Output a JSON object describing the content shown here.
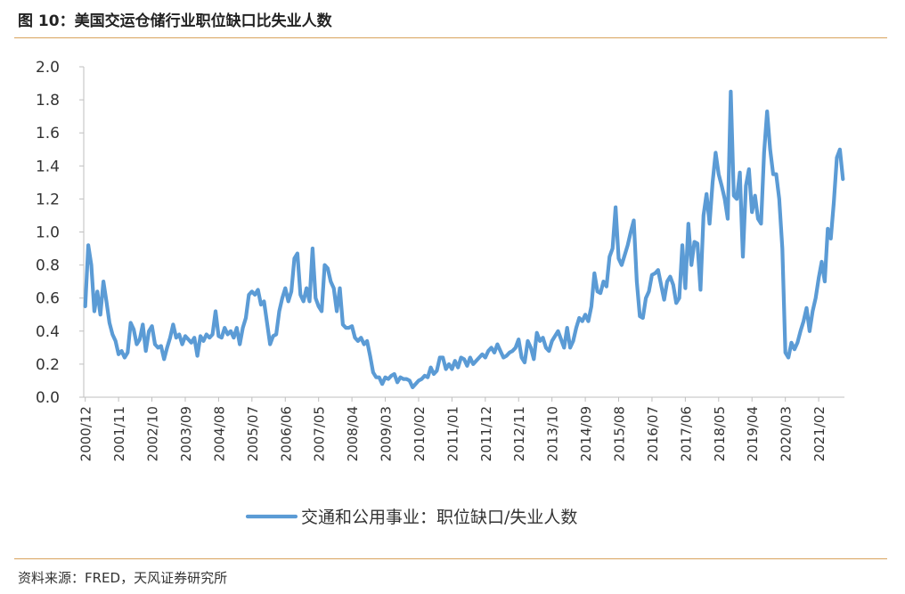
{
  "header": {
    "title": "图 10：美国交运仓储行业职位缺口比失业人数"
  },
  "footer": {
    "source": "资料来源：FRED，天风证券研究所"
  },
  "colors": {
    "line": "#5b9bd5",
    "rule": "#d9a35c",
    "axis": "#bfbfbf",
    "text": "#333333"
  },
  "chart_data": {
    "type": "line",
    "title": "",
    "xlabel": "",
    "ylabel": "",
    "ylim": [
      0,
      2.0
    ],
    "yticks": [
      "0.0",
      "0.2",
      "0.4",
      "0.6",
      "0.8",
      "1.0",
      "1.2",
      "1.4",
      "1.6",
      "1.8",
      "2.0"
    ],
    "xtick_labels": [
      "2000/12",
      "2001/11",
      "2002/10",
      "2003/09",
      "2004/08",
      "2005/07",
      "2006/06",
      "2007/05",
      "2008/04",
      "2009/03",
      "2010/02",
      "2011/01",
      "2011/12",
      "2012/11",
      "2013/10",
      "2014/09",
      "2015/08",
      "2016/07",
      "2017/06",
      "2018/05",
      "2019/04",
      "2020/03",
      "2021/02"
    ],
    "grid": false,
    "legend_position": "bottom",
    "series": [
      {
        "name": "交通和公用事业：职位缺口/失业人数",
        "points": [
          [
            "2000/12",
            0.55
          ],
          [
            "2001/01",
            0.92
          ],
          [
            "2001/02",
            0.8
          ],
          [
            "2001/03",
            0.52
          ],
          [
            "2001/04",
            0.64
          ],
          [
            "2001/05",
            0.5
          ],
          [
            "2001/06",
            0.7
          ],
          [
            "2001/07",
            0.58
          ],
          [
            "2001/08",
            0.45
          ],
          [
            "2001/09",
            0.38
          ],
          [
            "2001/10",
            0.34
          ],
          [
            "2001/11",
            0.26
          ],
          [
            "2001/12",
            0.28
          ],
          [
            "2002/01",
            0.24
          ],
          [
            "2002/02",
            0.27
          ],
          [
            "2002/03",
            0.45
          ],
          [
            "2002/04",
            0.41
          ],
          [
            "2002/05",
            0.32
          ],
          [
            "2002/06",
            0.35
          ],
          [
            "2002/07",
            0.44
          ],
          [
            "2002/08",
            0.28
          ],
          [
            "2002/09",
            0.4
          ],
          [
            "2002/10",
            0.43
          ],
          [
            "2002/11",
            0.32
          ],
          [
            "2002/12",
            0.3
          ],
          [
            "2003/01",
            0.31
          ],
          [
            "2003/02",
            0.23
          ],
          [
            "2003/03",
            0.3
          ],
          [
            "2003/04",
            0.36
          ],
          [
            "2003/05",
            0.44
          ],
          [
            "2003/06",
            0.36
          ],
          [
            "2003/07",
            0.38
          ],
          [
            "2003/08",
            0.32
          ],
          [
            "2003/09",
            0.37
          ],
          [
            "2003/10",
            0.35
          ],
          [
            "2003/11",
            0.33
          ],
          [
            "2003/12",
            0.36
          ],
          [
            "2004/01",
            0.25
          ],
          [
            "2004/02",
            0.37
          ],
          [
            "2004/03",
            0.34
          ],
          [
            "2004/04",
            0.38
          ],
          [
            "2004/05",
            0.36
          ],
          [
            "2004/06",
            0.38
          ],
          [
            "2004/07",
            0.52
          ],
          [
            "2004/08",
            0.37
          ],
          [
            "2004/09",
            0.36
          ],
          [
            "2004/10",
            0.42
          ],
          [
            "2004/11",
            0.38
          ],
          [
            "2004/12",
            0.4
          ],
          [
            "2005/01",
            0.36
          ],
          [
            "2005/02",
            0.42
          ],
          [
            "2005/03",
            0.32
          ],
          [
            "2005/04",
            0.42
          ],
          [
            "2005/05",
            0.48
          ],
          [
            "2005/06",
            0.62
          ],
          [
            "2005/07",
            0.64
          ],
          [
            "2005/08",
            0.62
          ],
          [
            "2005/09",
            0.65
          ],
          [
            "2005/10",
            0.56
          ],
          [
            "2005/11",
            0.58
          ],
          [
            "2005/12",
            0.45
          ],
          [
            "2006/01",
            0.32
          ],
          [
            "2006/02",
            0.37
          ],
          [
            "2006/03",
            0.38
          ],
          [
            "2006/04",
            0.52
          ],
          [
            "2006/05",
            0.6
          ],
          [
            "2006/06",
            0.66
          ],
          [
            "2006/07",
            0.58
          ],
          [
            "2006/08",
            0.64
          ],
          [
            "2006/09",
            0.84
          ],
          [
            "2006/10",
            0.87
          ],
          [
            "2006/11",
            0.62
          ],
          [
            "2006/12",
            0.58
          ],
          [
            "2007/01",
            0.66
          ],
          [
            "2007/02",
            0.58
          ],
          [
            "2007/03",
            0.9
          ],
          [
            "2007/04",
            0.6
          ],
          [
            "2007/05",
            0.55
          ],
          [
            "2007/06",
            0.52
          ],
          [
            "2007/07",
            0.8
          ],
          [
            "2007/08",
            0.78
          ],
          [
            "2007/09",
            0.7
          ],
          [
            "2007/10",
            0.66
          ],
          [
            "2007/11",
            0.52
          ],
          [
            "2007/12",
            0.66
          ],
          [
            "2008/01",
            0.44
          ],
          [
            "2008/02",
            0.42
          ],
          [
            "2008/03",
            0.42
          ],
          [
            "2008/04",
            0.43
          ],
          [
            "2008/05",
            0.36
          ],
          [
            "2008/06",
            0.34
          ],
          [
            "2008/07",
            0.36
          ],
          [
            "2008/08",
            0.32
          ],
          [
            "2008/09",
            0.34
          ],
          [
            "2008/10",
            0.25
          ],
          [
            "2008/11",
            0.15
          ],
          [
            "2008/12",
            0.12
          ],
          [
            "2009/01",
            0.12
          ],
          [
            "2009/02",
            0.08
          ],
          [
            "2009/03",
            0.12
          ],
          [
            "2009/04",
            0.11
          ],
          [
            "2009/05",
            0.13
          ],
          [
            "2009/06",
            0.14
          ],
          [
            "2009/07",
            0.09
          ],
          [
            "2009/08",
            0.12
          ],
          [
            "2009/09",
            0.11
          ],
          [
            "2009/10",
            0.11
          ],
          [
            "2009/11",
            0.1
          ],
          [
            "2009/12",
            0.06
          ],
          [
            "2010/01",
            0.08
          ],
          [
            "2010/02",
            0.1
          ],
          [
            "2010/03",
            0.11
          ],
          [
            "2010/04",
            0.13
          ],
          [
            "2010/05",
            0.12
          ],
          [
            "2010/06",
            0.18
          ],
          [
            "2010/07",
            0.14
          ],
          [
            "2010/08",
            0.16
          ],
          [
            "2010/09",
            0.24
          ],
          [
            "2010/10",
            0.24
          ],
          [
            "2010/11",
            0.17
          ],
          [
            "2010/12",
            0.2
          ],
          [
            "2011/01",
            0.17
          ],
          [
            "2011/02",
            0.22
          ],
          [
            "2011/03",
            0.18
          ],
          [
            "2011/04",
            0.24
          ],
          [
            "2011/05",
            0.23
          ],
          [
            "2011/06",
            0.19
          ],
          [
            "2011/07",
            0.24
          ],
          [
            "2011/08",
            0.2
          ],
          [
            "2011/09",
            0.22
          ],
          [
            "2011/10",
            0.24
          ],
          [
            "2011/11",
            0.26
          ],
          [
            "2011/12",
            0.24
          ],
          [
            "2012/01",
            0.28
          ],
          [
            "2012/02",
            0.3
          ],
          [
            "2012/03",
            0.27
          ],
          [
            "2012/04",
            0.32
          ],
          [
            "2012/05",
            0.28
          ],
          [
            "2012/06",
            0.24
          ],
          [
            "2012/07",
            0.25
          ],
          [
            "2012/08",
            0.27
          ],
          [
            "2012/09",
            0.28
          ],
          [
            "2012/10",
            0.3
          ],
          [
            "2012/11",
            0.35
          ],
          [
            "2012/12",
            0.24
          ],
          [
            "2013/01",
            0.21
          ],
          [
            "2013/02",
            0.34
          ],
          [
            "2013/03",
            0.3
          ],
          [
            "2013/04",
            0.23
          ],
          [
            "2013/05",
            0.39
          ],
          [
            "2013/06",
            0.34
          ],
          [
            "2013/07",
            0.36
          ],
          [
            "2013/08",
            0.3
          ],
          [
            "2013/09",
            0.28
          ],
          [
            "2013/10",
            0.34
          ],
          [
            "2013/11",
            0.37
          ],
          [
            "2013/12",
            0.4
          ],
          [
            "2014/01",
            0.35
          ],
          [
            "2014/02",
            0.3
          ],
          [
            "2014/03",
            0.42
          ],
          [
            "2014/04",
            0.3
          ],
          [
            "2014/05",
            0.34
          ],
          [
            "2014/06",
            0.42
          ],
          [
            "2014/07",
            0.48
          ],
          [
            "2014/08",
            0.46
          ],
          [
            "2014/09",
            0.5
          ],
          [
            "2014/10",
            0.46
          ],
          [
            "2014/11",
            0.55
          ],
          [
            "2014/12",
            0.75
          ],
          [
            "2015/01",
            0.64
          ],
          [
            "2015/02",
            0.63
          ],
          [
            "2015/03",
            0.7
          ],
          [
            "2015/04",
            0.67
          ],
          [
            "2015/05",
            0.85
          ],
          [
            "2015/06",
            0.9
          ],
          [
            "2015/07",
            1.15
          ],
          [
            "2015/08",
            0.84
          ],
          [
            "2015/09",
            0.8
          ],
          [
            "2015/10",
            0.86
          ],
          [
            "2015/11",
            0.92
          ],
          [
            "2015/12",
            1.0
          ],
          [
            "2016/01",
            1.07
          ],
          [
            "2016/02",
            0.7
          ],
          [
            "2016/03",
            0.49
          ],
          [
            "2016/04",
            0.48
          ],
          [
            "2016/05",
            0.6
          ],
          [
            "2016/06",
            0.64
          ],
          [
            "2016/07",
            0.74
          ],
          [
            "2016/08",
            0.75
          ],
          [
            "2016/09",
            0.77
          ],
          [
            "2016/10",
            0.68
          ],
          [
            "2016/11",
            0.59
          ],
          [
            "2016/12",
            0.7
          ],
          [
            "2017/01",
            0.73
          ],
          [
            "2017/02",
            0.68
          ],
          [
            "2017/03",
            0.57
          ],
          [
            "2017/04",
            0.6
          ],
          [
            "2017/05",
            0.92
          ],
          [
            "2017/06",
            0.66
          ],
          [
            "2017/07",
            1.05
          ],
          [
            "2017/08",
            0.8
          ],
          [
            "2017/09",
            0.94
          ],
          [
            "2017/10",
            0.93
          ],
          [
            "2017/11",
            0.65
          ],
          [
            "2017/12",
            1.1
          ],
          [
            "2018/01",
            1.23
          ],
          [
            "2018/02",
            1.05
          ],
          [
            "2018/03",
            1.3
          ],
          [
            "2018/04",
            1.48
          ],
          [
            "2018/05",
            1.35
          ],
          [
            "2018/06",
            1.28
          ],
          [
            "2018/07",
            1.2
          ],
          [
            "2018/08",
            1.08
          ],
          [
            "2018/09",
            1.85
          ],
          [
            "2018/10",
            1.22
          ],
          [
            "2018/11",
            1.2
          ],
          [
            "2018/12",
            1.36
          ],
          [
            "2019/01",
            0.85
          ],
          [
            "2019/02",
            1.28
          ],
          [
            "2019/03",
            1.38
          ],
          [
            "2019/04",
            1.12
          ],
          [
            "2019/05",
            1.22
          ],
          [
            "2019/06",
            1.08
          ],
          [
            "2019/07",
            1.05
          ],
          [
            "2019/08",
            1.48
          ],
          [
            "2019/09",
            1.73
          ],
          [
            "2019/10",
            1.5
          ],
          [
            "2019/11",
            1.35
          ],
          [
            "2019/12",
            1.35
          ],
          [
            "2020/01",
            1.2
          ],
          [
            "2020/02",
            0.9
          ],
          [
            "2020/03",
            0.27
          ],
          [
            "2020/04",
            0.24
          ],
          [
            "2020/05",
            0.33
          ],
          [
            "2020/06",
            0.29
          ],
          [
            "2020/07",
            0.33
          ],
          [
            "2020/08",
            0.4
          ],
          [
            "2020/09",
            0.46
          ],
          [
            "2020/10",
            0.54
          ],
          [
            "2020/11",
            0.4
          ],
          [
            "2020/12",
            0.52
          ],
          [
            "2021/01",
            0.6
          ],
          [
            "2021/02",
            0.72
          ],
          [
            "2021/03",
            0.82
          ],
          [
            "2021/04",
            0.7
          ],
          [
            "2021/05",
            1.02
          ],
          [
            "2021/06",
            0.96
          ],
          [
            "2021/07",
            1.18
          ],
          [
            "2021/08",
            1.45
          ],
          [
            "2021/09",
            1.5
          ],
          [
            "2021/10",
            1.32
          ]
        ]
      }
    ]
  }
}
